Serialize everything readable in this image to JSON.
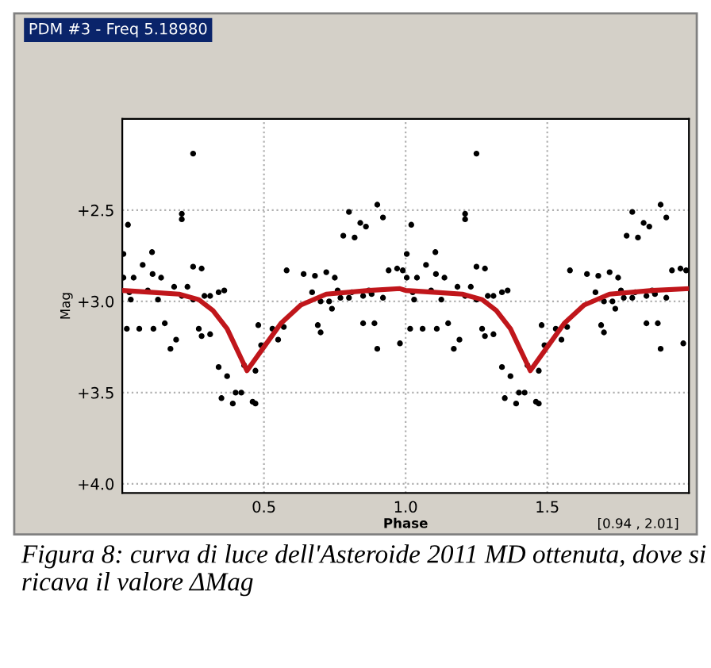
{
  "chart_data": {
    "type": "scatter",
    "title": "PDM #3 - Freq 5.18980",
    "xlabel": "Phase",
    "ylabel": "Mag",
    "annotations": [
      "[0.94 , 2.01]",
      "Figura 8: curva di luce dell'Asteroide 2011 MD ottenuta, dove si ricava il valore ΔMag"
    ],
    "xlim": [
      0,
      2
    ],
    "xticks": [
      {
        "value": 0.5,
        "label": "0.5"
      },
      {
        "value": 1.0,
        "label": "1.0"
      },
      {
        "value": 1.5,
        "label": "1.5"
      }
    ],
    "ylim": [
      4.05,
      2.0
    ],
    "yticks": [
      {
        "value": 2.5,
        "label": "+2.5"
      },
      {
        "value": 3.0,
        "label": "+3.0"
      },
      {
        "value": 3.5,
        "label": "+3.5"
      },
      {
        "value": 4.0,
        "label": "+4.0"
      }
    ],
    "grid": true,
    "marker": "circle",
    "series": [
      {
        "color": "#000000",
        "x": [
          0.25,
          0.02,
          0.21,
          0.21,
          0.004,
          0.105,
          0.072,
          0.25,
          0.28,
          0.004,
          0.04,
          0.107,
          0.137,
          0.183,
          0.23,
          0.025,
          0.09,
          0.34,
          0.36,
          0.31,
          0.03,
          0.126,
          0.21,
          0.25,
          0.29,
          0.9,
          0.8,
          0.92,
          0.84,
          0.86,
          0.78,
          0.82,
          0.58,
          0.64,
          0.68,
          0.72,
          0.75,
          0.94,
          0.97,
          0.99,
          0.67,
          0.76,
          0.81,
          0.87,
          0.7,
          0.73,
          0.77,
          0.8,
          0.85,
          0.88,
          0.92,
          0.74,
          0.016,
          0.06,
          0.11,
          0.15,
          0.19,
          0.17,
          0.27,
          0.28,
          0.31,
          0.34,
          0.37,
          0.43,
          0.47,
          0.35,
          0.4,
          0.42,
          0.39,
          0.46,
          0.47,
          0.49,
          0.48,
          0.53,
          0.55,
          0.57,
          0.7,
          0.69,
          0.9,
          0.98,
          0.85,
          0.89,
          1.25,
          1.02,
          1.21,
          1.21,
          1.004,
          1.105,
          1.072,
          1.25,
          1.28,
          1.004,
          1.04,
          1.107,
          1.137,
          1.183,
          1.23,
          1.025,
          1.09,
          1.34,
          1.36,
          1.31,
          1.03,
          1.126,
          1.21,
          1.25,
          1.29,
          1.9,
          1.8,
          1.92,
          1.84,
          1.86,
          1.78,
          1.82,
          1.58,
          1.64,
          1.68,
          1.72,
          1.75,
          1.94,
          1.97,
          1.99,
          1.67,
          1.76,
          1.81,
          1.87,
          1.7,
          1.73,
          1.77,
          1.8,
          1.85,
          1.88,
          1.92,
          1.74,
          1.016,
          1.06,
          1.11,
          1.15,
          1.19,
          1.17,
          1.27,
          1.28,
          1.31,
          1.34,
          1.37,
          1.43,
          1.47,
          1.35,
          1.4,
          1.42,
          1.39,
          1.46,
          1.47,
          1.49,
          1.48,
          1.53,
          1.55,
          1.57,
          1.7,
          1.69,
          1.9,
          1.98,
          1.85,
          1.89
        ],
        "values": [
          2.19,
          2.58,
          2.52,
          2.55,
          2.74,
          2.73,
          2.8,
          2.81,
          2.82,
          2.87,
          2.87,
          2.85,
          2.87,
          2.92,
          2.92,
          2.95,
          2.94,
          2.95,
          2.94,
          2.97,
          2.99,
          2.99,
          2.97,
          2.99,
          2.97,
          2.47,
          2.51,
          2.54,
          2.57,
          2.59,
          2.64,
          2.65,
          2.83,
          2.85,
          2.86,
          2.84,
          2.87,
          2.83,
          2.82,
          2.83,
          2.95,
          2.94,
          2.95,
          2.94,
          3.0,
          3.0,
          2.98,
          2.98,
          2.97,
          2.96,
          2.98,
          3.04,
          3.15,
          3.15,
          3.15,
          3.12,
          3.21,
          3.26,
          3.15,
          3.19,
          3.18,
          3.36,
          3.41,
          3.35,
          3.38,
          3.53,
          3.5,
          3.5,
          3.56,
          3.55,
          3.56,
          3.24,
          3.13,
          3.15,
          3.21,
          3.14,
          3.17,
          3.13,
          3.26,
          3.23,
          3.12,
          3.12,
          2.19,
          2.58,
          2.52,
          2.55,
          2.74,
          2.73,
          2.8,
          2.81,
          2.82,
          2.87,
          2.87,
          2.85,
          2.87,
          2.92,
          2.92,
          2.95,
          2.94,
          2.95,
          2.94,
          2.97,
          2.99,
          2.99,
          2.97,
          2.99,
          2.97,
          2.47,
          2.51,
          2.54,
          2.57,
          2.59,
          2.64,
          2.65,
          2.83,
          2.85,
          2.86,
          2.84,
          2.87,
          2.83,
          2.82,
          2.83,
          2.95,
          2.94,
          2.95,
          2.94,
          3.0,
          3.0,
          2.98,
          2.98,
          2.97,
          2.96,
          2.98,
          3.04,
          3.15,
          3.15,
          3.15,
          3.12,
          3.21,
          3.26,
          3.15,
          3.19,
          3.18,
          3.36,
          3.41,
          3.35,
          3.38,
          3.53,
          3.5,
          3.5,
          3.56,
          3.55,
          3.56,
          3.24,
          3.13,
          3.15,
          3.21,
          3.14,
          3.17,
          3.13,
          3.26,
          3.23,
          3.12,
          3.12
        ]
      },
      {
        "type": "line",
        "color": "#c0161b",
        "marker": "none",
        "x": [
          0,
          0.1,
          0.2,
          0.27,
          0.32,
          0.37,
          0.44,
          0.5,
          0.56,
          0.63,
          0.72,
          0.87,
          0.98,
          1.0,
          1.1,
          1.2,
          1.27,
          1.32,
          1.37,
          1.44,
          1.5,
          1.56,
          1.63,
          1.72,
          1.87,
          2.0
        ],
        "values": [
          2.94,
          2.95,
          2.96,
          2.99,
          3.05,
          3.15,
          3.38,
          3.25,
          3.12,
          3.02,
          2.96,
          2.94,
          2.93,
          2.94,
          2.95,
          2.96,
          2.99,
          3.05,
          3.15,
          3.38,
          3.25,
          3.12,
          3.02,
          2.96,
          2.94,
          2.93
        ]
      }
    ]
  }
}
